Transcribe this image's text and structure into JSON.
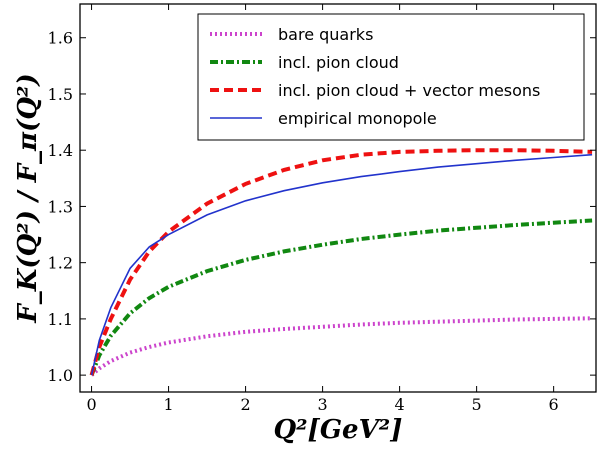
{
  "chart_data": {
    "type": "line",
    "xlabel": "Q²[GeV²]",
    "ylabel": "F_K(Q²) / F_π(Q²)",
    "xlim": [
      -0.15,
      6.55
    ],
    "ylim": [
      0.97,
      1.66
    ],
    "xticks": [
      0,
      1,
      2,
      3,
      4,
      5,
      6
    ],
    "yticks": [
      1.0,
      1.1,
      1.2,
      1.3,
      1.4,
      1.5,
      1.6
    ],
    "legend_position": "top-right",
    "grid": false,
    "series": [
      {
        "name": "bare quarks",
        "color": "#cc44cc",
        "style": "dotted",
        "x": [
          0,
          0.1,
          0.25,
          0.5,
          0.75,
          1.0,
          1.5,
          2.0,
          2.5,
          3.0,
          3.5,
          4.0,
          4.5,
          5.0,
          5.5,
          6.0,
          6.5
        ],
        "y": [
          1.0,
          1.012,
          1.025,
          1.04,
          1.05,
          1.058,
          1.069,
          1.077,
          1.082,
          1.086,
          1.09,
          1.093,
          1.095,
          1.097,
          1.099,
          1.1,
          1.101
        ]
      },
      {
        "name": "incl. pion cloud",
        "color": "#118811",
        "style": "dashdot",
        "x": [
          0,
          0.1,
          0.25,
          0.5,
          0.75,
          1.0,
          1.5,
          2.0,
          2.5,
          3.0,
          3.5,
          4.0,
          4.5,
          5.0,
          5.5,
          6.0,
          6.5
        ],
        "y": [
          1.0,
          1.035,
          1.07,
          1.11,
          1.137,
          1.157,
          1.185,
          1.205,
          1.22,
          1.232,
          1.242,
          1.25,
          1.257,
          1.262,
          1.267,
          1.271,
          1.275
        ]
      },
      {
        "name": "incl. pion cloud + vector mesons",
        "color": "#ee1111",
        "style": "dashed",
        "x": [
          0,
          0.1,
          0.25,
          0.5,
          0.75,
          1.0,
          1.5,
          2.0,
          2.5,
          3.0,
          3.5,
          4.0,
          4.5,
          5.0,
          5.5,
          6.0,
          6.5
        ],
        "y": [
          1.0,
          1.05,
          1.1,
          1.17,
          1.22,
          1.255,
          1.305,
          1.34,
          1.365,
          1.382,
          1.392,
          1.397,
          1.399,
          1.4,
          1.4,
          1.399,
          1.397
        ]
      },
      {
        "name": "empirical monopole",
        "color": "#2233cc",
        "style": "solid",
        "x": [
          0,
          0.1,
          0.25,
          0.5,
          0.75,
          1.0,
          1.5,
          2.0,
          2.5,
          3.0,
          3.5,
          4.0,
          4.5,
          5.0,
          5.5,
          6.0,
          6.5
        ],
        "y": [
          1.0,
          1.062,
          1.12,
          1.19,
          1.228,
          1.25,
          1.285,
          1.31,
          1.328,
          1.342,
          1.353,
          1.362,
          1.37,
          1.376,
          1.382,
          1.387,
          1.392
        ]
      }
    ]
  }
}
